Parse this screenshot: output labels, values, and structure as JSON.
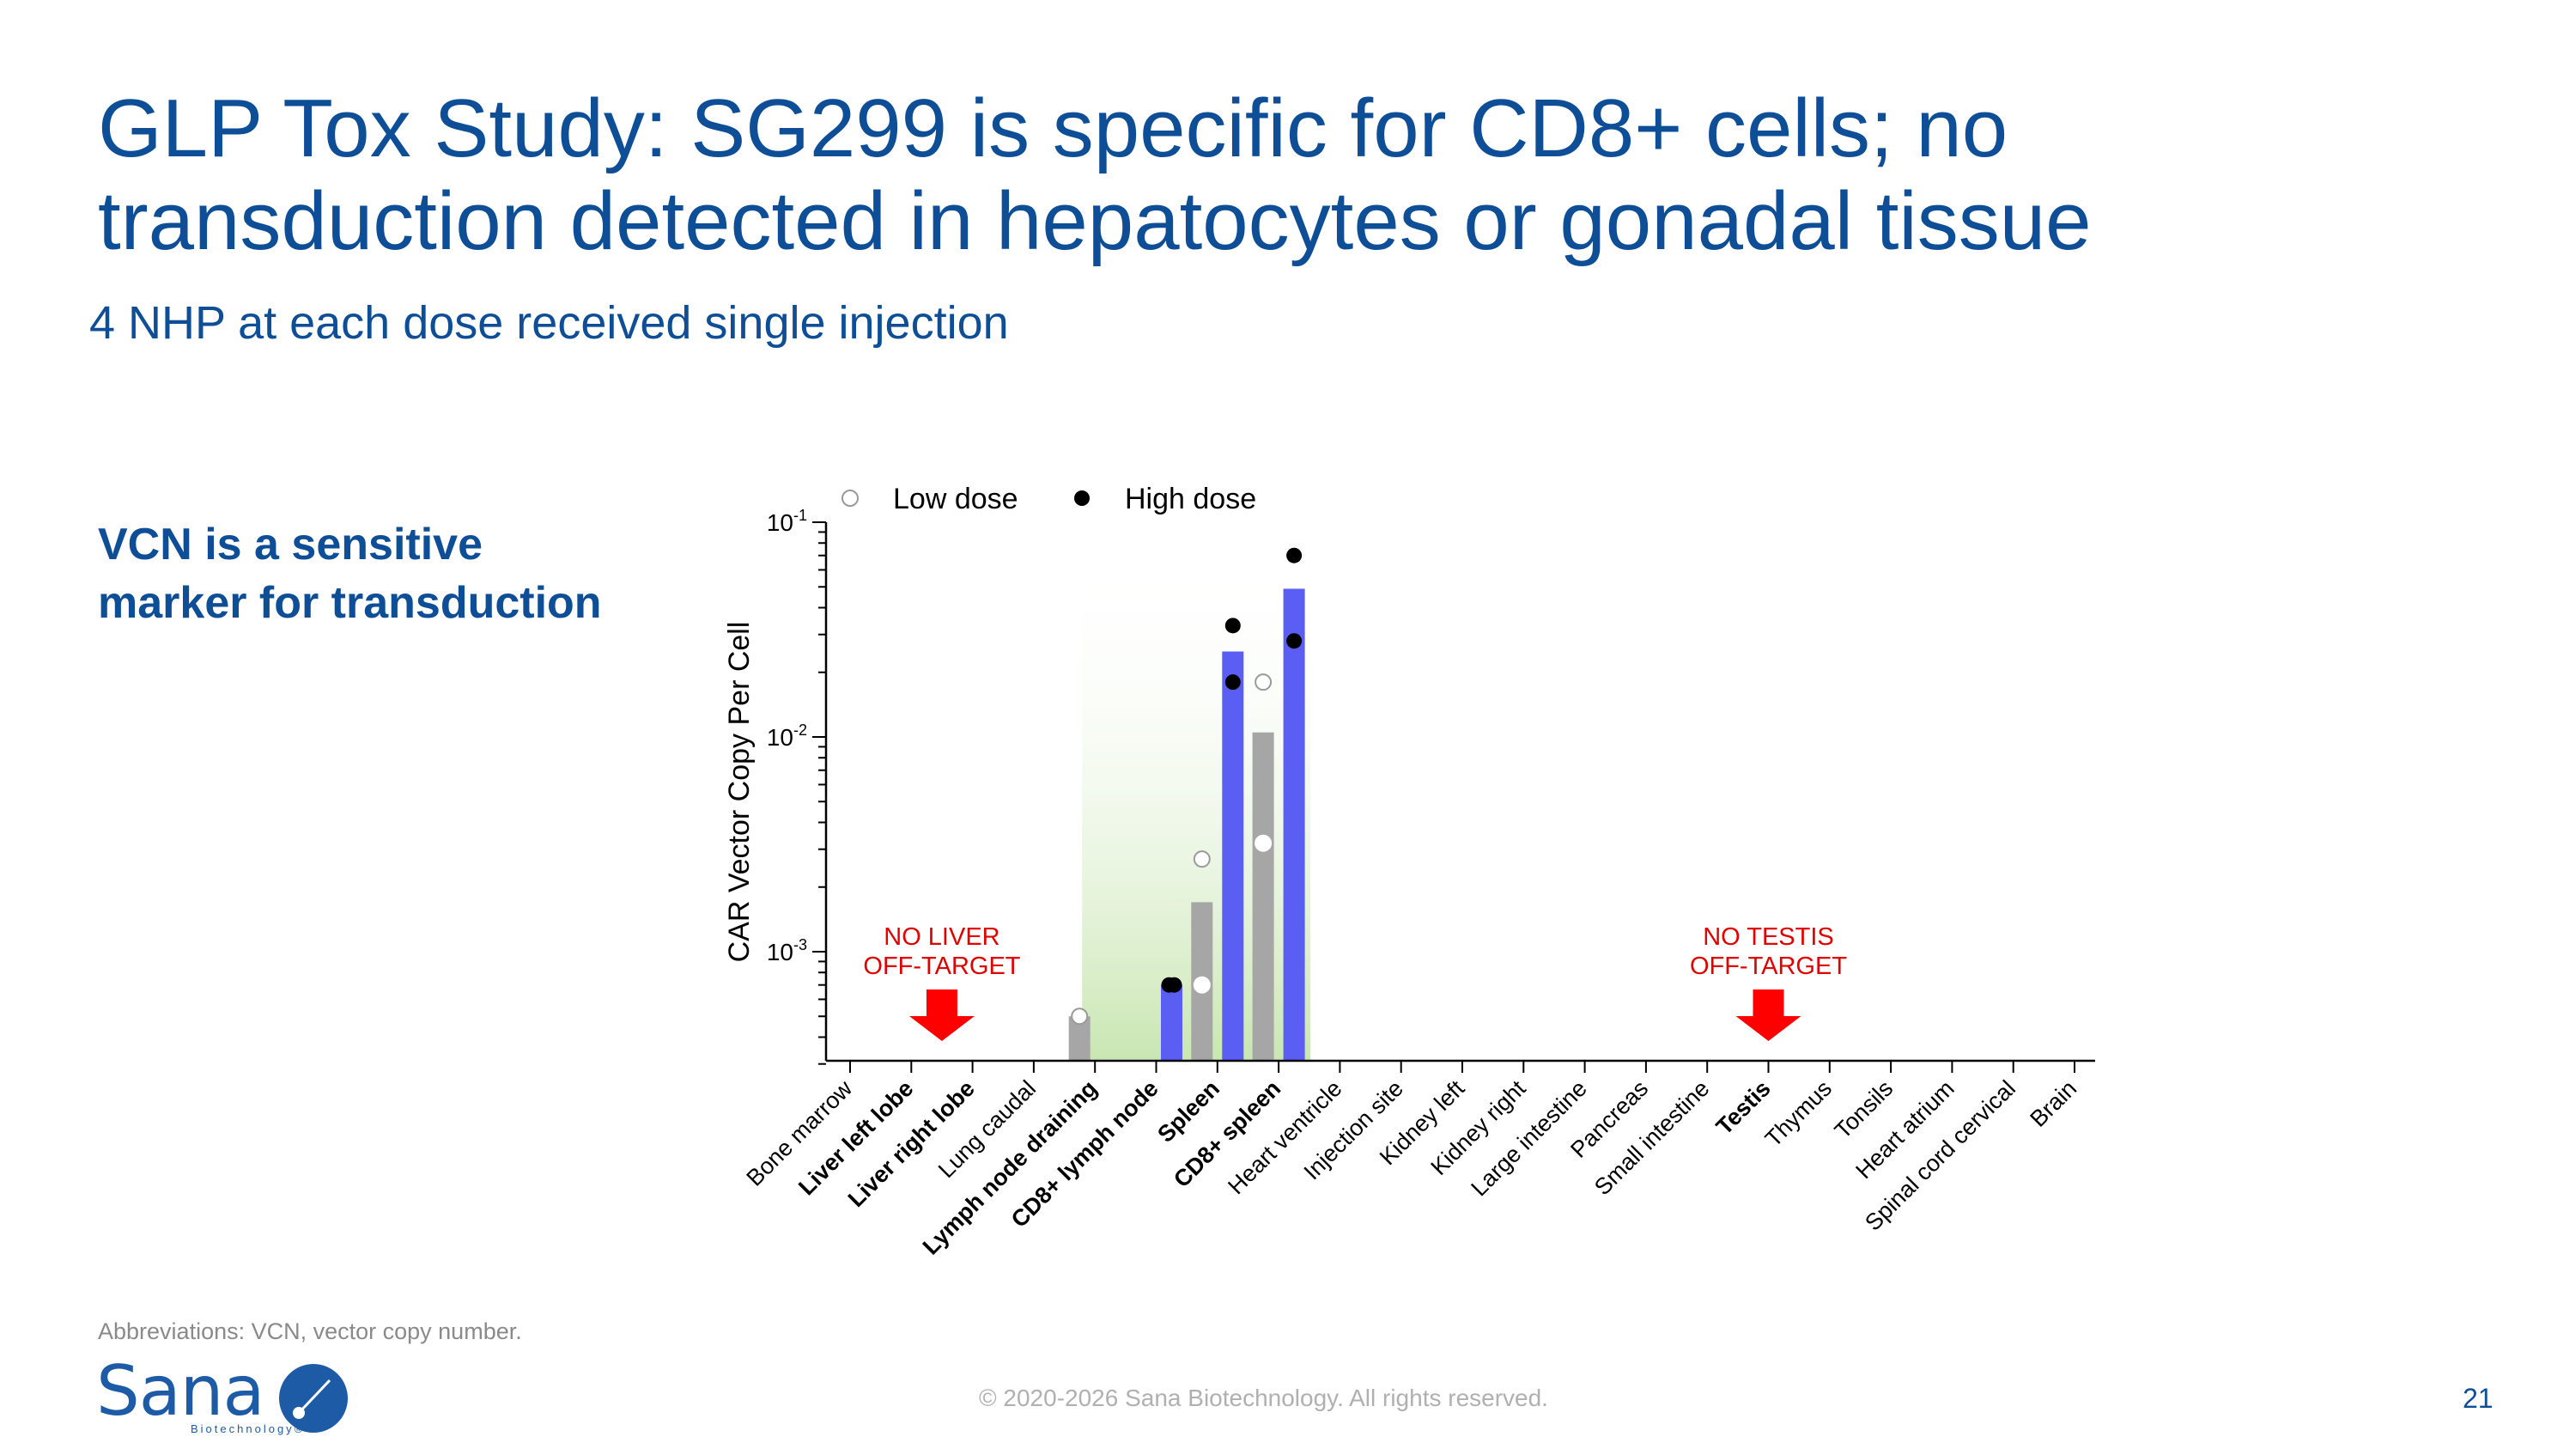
{
  "slide": {
    "title_line1": "GLP Tox Study: SG299 is specific for CD8+ cells; no",
    "title_line2": "transduction detected in hepatocytes or gonadal tissue",
    "subtitle": "4 NHP at each dose received single injection",
    "callout_line1": "VCN is a sensitive",
    "callout_line2": "marker for transduction",
    "footnote": "Abbreviations: VCN, vector copy number.",
    "copyright": "© 2020-2026 Sana Biotechnology. All rights reserved.",
    "page_number": "21",
    "logo_text": "Sana",
    "logo_subtext": "Biotechnology®",
    "colors": {
      "title": "#0d4e96",
      "low_bar": "#a6a6a6",
      "high_bar": "#5a5ef2",
      "annotation": "#e00000",
      "highlight": "#c9e6b2"
    }
  },
  "chart_data": {
    "type": "bar",
    "ylabel": "CAR Vector Copy Per Cell",
    "yscale": "log",
    "ylim": [
      0.0003,
      0.1
    ],
    "yticks": [
      {
        "value": 0.001,
        "base": "10",
        "exp": "-3"
      },
      {
        "value": 0.01,
        "base": "10",
        "exp": "-2"
      },
      {
        "value": 0.1,
        "base": "10",
        "exp": "-1"
      }
    ],
    "categories": [
      {
        "label": "Bone marrow",
        "bold": false
      },
      {
        "label": "Liver left lobe",
        "bold": true
      },
      {
        "label": "Liver right lobe",
        "bold": true
      },
      {
        "label": "Lung caudal",
        "bold": false
      },
      {
        "label": "Lymph node draining",
        "bold": true
      },
      {
        "label": "CD8+ lymph node",
        "bold": true
      },
      {
        "label": "Spleen",
        "bold": true
      },
      {
        "label": "CD8+ spleen",
        "bold": true
      },
      {
        "label": "Heart ventricle",
        "bold": false
      },
      {
        "label": "Injection site",
        "bold": false
      },
      {
        "label": "Kidney left",
        "bold": false
      },
      {
        "label": "Kidney right",
        "bold": false
      },
      {
        "label": "Large intestine",
        "bold": false
      },
      {
        "label": "Pancreas",
        "bold": false
      },
      {
        "label": "Small intestine",
        "bold": false
      },
      {
        "label": "Testis",
        "bold": true
      },
      {
        "label": "Thymus",
        "bold": false
      },
      {
        "label": "Tonsils",
        "bold": false
      },
      {
        "label": "Heart atrium",
        "bold": false
      },
      {
        "label": "Spinal cord cervical",
        "bold": false
      },
      {
        "label": "Brain",
        "bold": false
      }
    ],
    "series": [
      {
        "name": "Low dose",
        "marker": "open-circle",
        "values": [
          null,
          null,
          null,
          null,
          0.0005,
          null,
          0.0017,
          0.0105,
          null,
          null,
          null,
          null,
          null,
          null,
          null,
          null,
          null,
          null,
          null,
          null,
          null
        ],
        "points": [
          [],
          [],
          [],
          [],
          [
            0.0005
          ],
          [],
          [
            0.0027,
            0.0007
          ],
          [
            0.018,
            0.0032
          ],
          [],
          [],
          [],
          [],
          [],
          [],
          [],
          [],
          [],
          [],
          [],
          [],
          []
        ]
      },
      {
        "name": "High dose",
        "marker": "filled-circle",
        "values": [
          null,
          null,
          null,
          null,
          null,
          0.0007,
          0.025,
          0.049,
          null,
          null,
          null,
          null,
          null,
          null,
          null,
          null,
          null,
          null,
          null,
          null,
          null
        ],
        "points": [
          [],
          [],
          [],
          [],
          [],
          [
            0.0007,
            0.0007
          ],
          [
            0.033,
            0.018
          ],
          [
            0.07,
            0.028
          ],
          [],
          [],
          [],
          [],
          [],
          [],
          [],
          [],
          [],
          [],
          [],
          [],
          []
        ]
      }
    ],
    "legend": {
      "position": "top-left",
      "entries": [
        "Low dose",
        "High dose"
      ]
    },
    "annotations": [
      {
        "line1": "NO LIVER",
        "line2": "OFF-TARGET",
        "category_index": 1.5
      },
      {
        "line1": "NO TESTIS",
        "line2": "OFF-TARGET",
        "category_index": 15
      }
    ],
    "highlight_range": [
      4,
      7
    ]
  }
}
